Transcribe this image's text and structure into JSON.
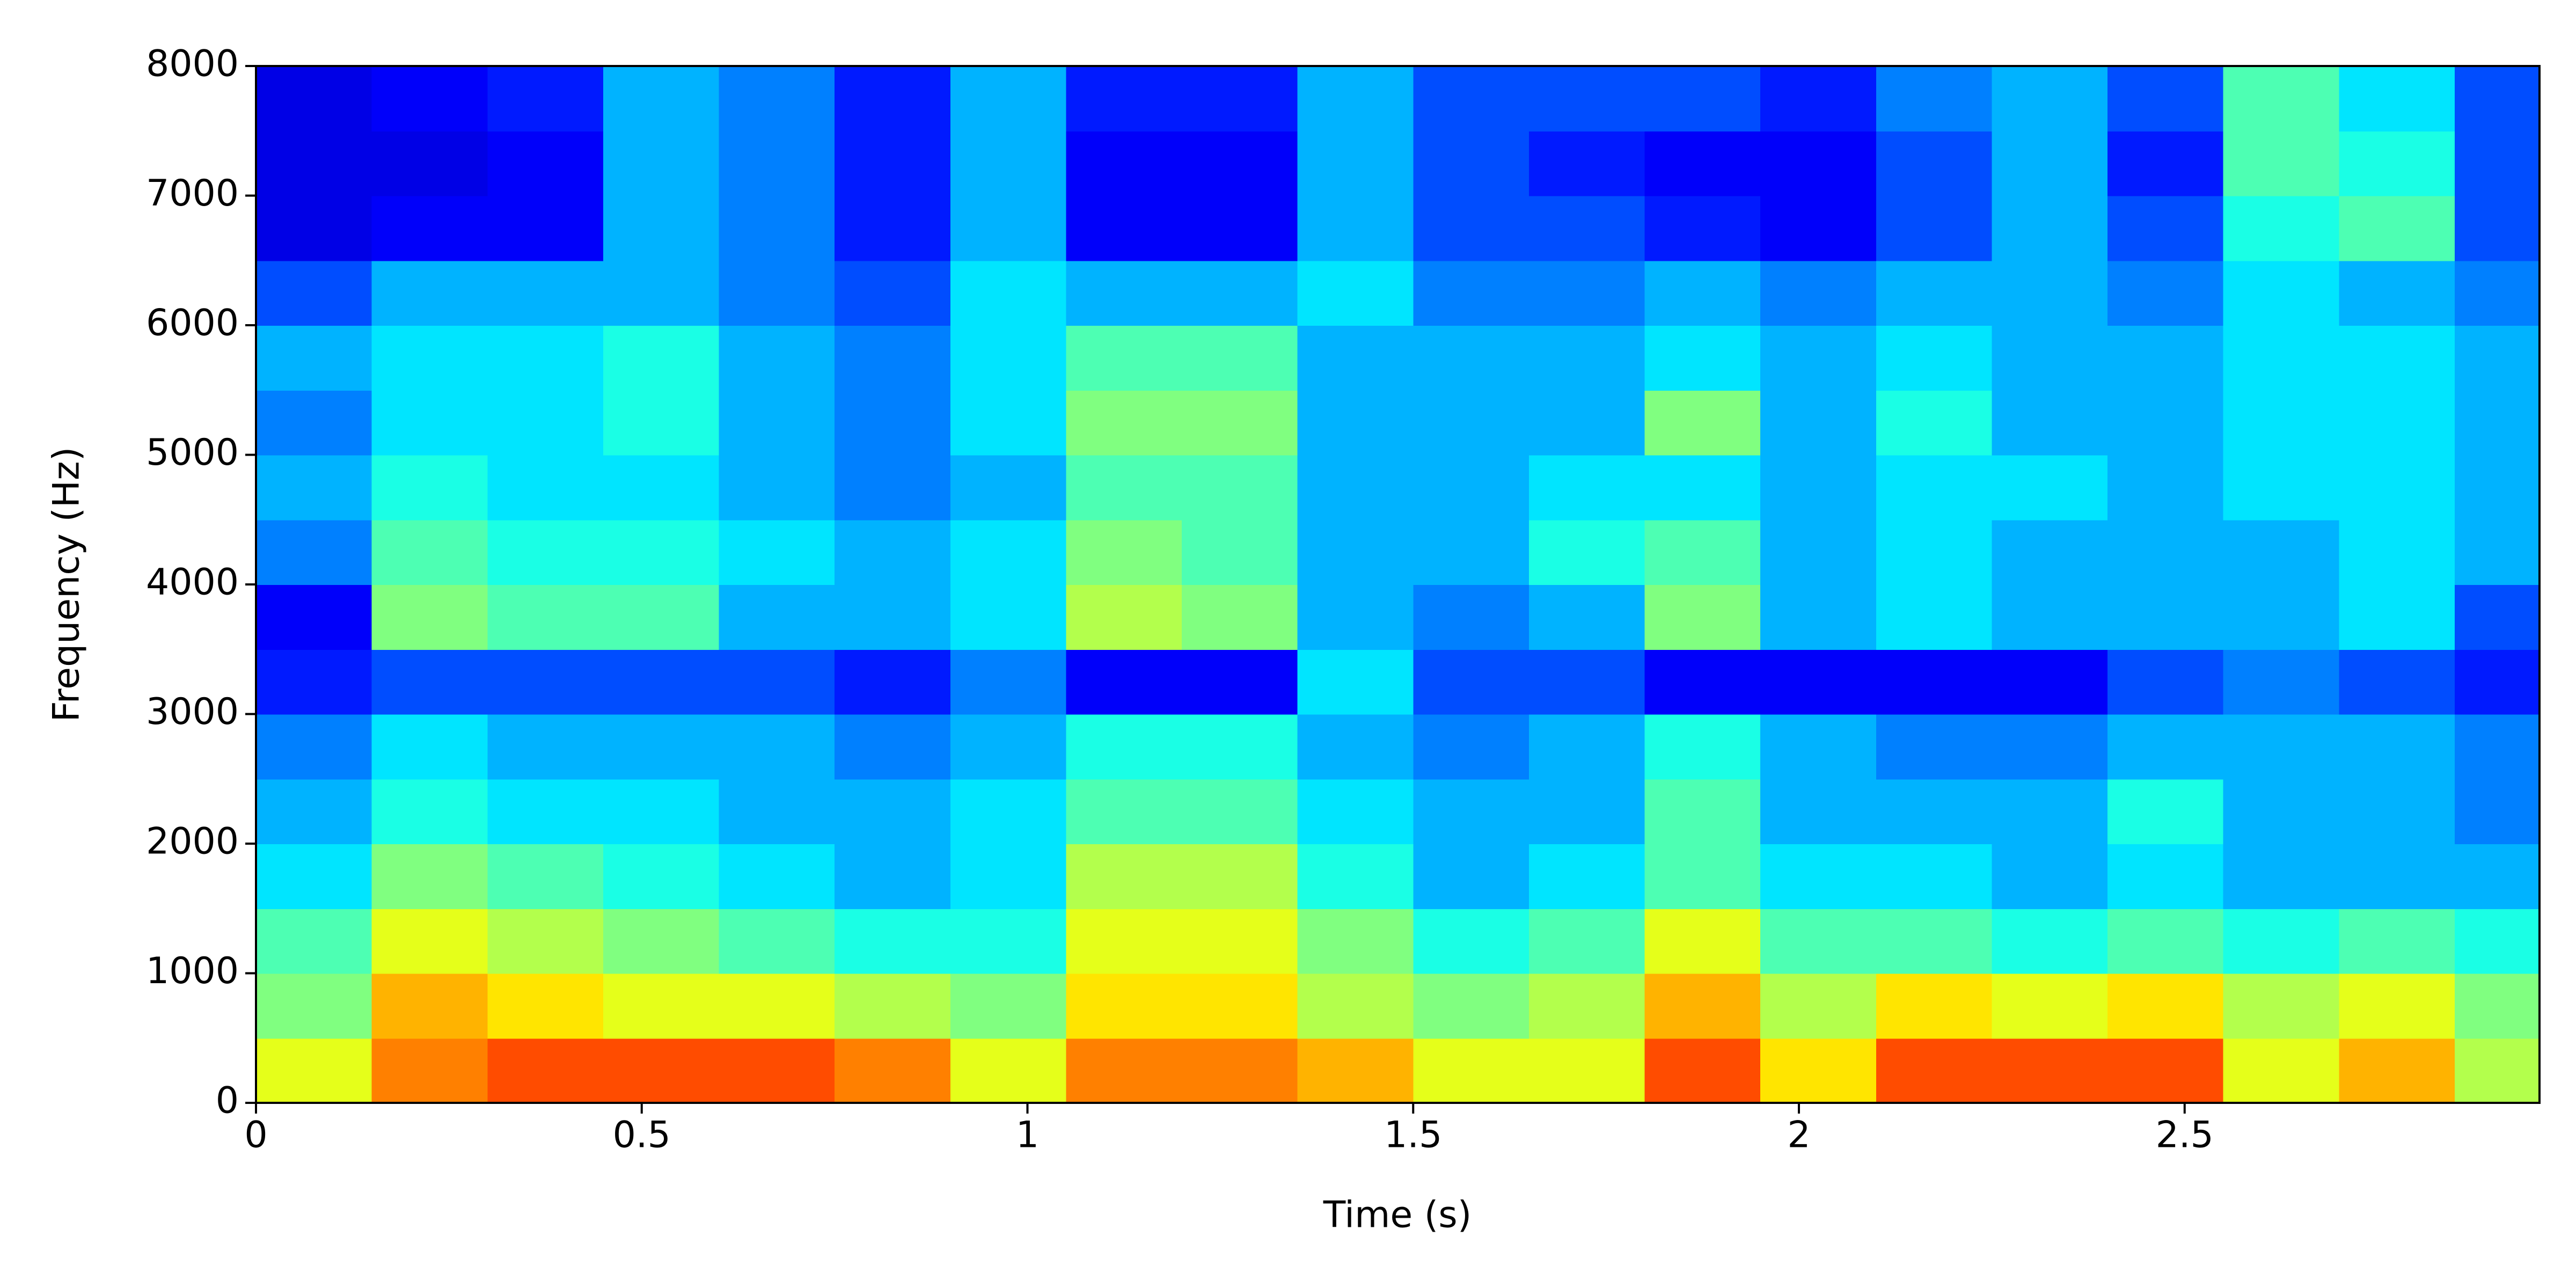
{
  "chart_data": {
    "type": "heatmap",
    "xlabel": "Time (s)",
    "ylabel": "Frequency (Hz)",
    "colormap": "jet",
    "clim": [
      0,
      1
    ],
    "xbins": [
      0,
      0.15,
      0.3,
      0.45,
      0.6,
      0.75,
      0.9,
      1.05,
      1.2,
      1.35,
      1.5,
      1.65,
      1.8,
      1.95,
      2.1,
      2.25,
      2.4,
      2.55,
      2.7,
      2.85,
      2.96
    ],
    "ybins": [
      0,
      500,
      1000,
      1500,
      2000,
      2500,
      3000,
      3500,
      4000,
      4500,
      5000,
      5500,
      6000,
      6500,
      7000,
      7500,
      8000
    ],
    "values": [
      [
        0.6,
        0.75,
        0.8,
        0.8,
        0.8,
        0.75,
        0.6,
        0.75,
        0.75,
        0.7,
        0.6,
        0.6,
        0.8,
        0.65,
        0.8,
        0.8,
        0.8,
        0.6,
        0.7,
        0.55
      ],
      [
        0.5,
        0.7,
        0.65,
        0.6,
        0.6,
        0.55,
        0.5,
        0.65,
        0.65,
        0.55,
        0.5,
        0.55,
        0.7,
        0.55,
        0.65,
        0.6,
        0.65,
        0.55,
        0.6,
        0.5
      ],
      [
        0.45,
        0.6,
        0.55,
        0.5,
        0.45,
        0.4,
        0.4,
        0.6,
        0.6,
        0.5,
        0.4,
        0.45,
        0.6,
        0.45,
        0.45,
        0.4,
        0.45,
        0.4,
        0.45,
        0.4
      ],
      [
        0.35,
        0.5,
        0.45,
        0.4,
        0.35,
        0.3,
        0.35,
        0.55,
        0.55,
        0.4,
        0.3,
        0.35,
        0.45,
        0.35,
        0.35,
        0.3,
        0.35,
        0.3,
        0.3,
        0.3
      ],
      [
        0.3,
        0.4,
        0.35,
        0.35,
        0.3,
        0.3,
        0.35,
        0.45,
        0.45,
        0.35,
        0.3,
        0.3,
        0.45,
        0.3,
        0.3,
        0.3,
        0.4,
        0.3,
        0.3,
        0.25
      ],
      [
        0.25,
        0.35,
        0.3,
        0.3,
        0.3,
        0.25,
        0.3,
        0.4,
        0.4,
        0.3,
        0.25,
        0.3,
        0.4,
        0.3,
        0.25,
        0.25,
        0.3,
        0.3,
        0.3,
        0.25
      ],
      [
        0.15,
        0.2,
        0.2,
        0.2,
        0.2,
        0.15,
        0.25,
        0.12,
        0.12,
        0.35,
        0.2,
        0.2,
        0.12,
        0.12,
        0.12,
        0.12,
        0.2,
        0.25,
        0.2,
        0.15
      ],
      [
        0.12,
        0.5,
        0.45,
        0.45,
        0.3,
        0.3,
        0.35,
        0.55,
        0.5,
        0.3,
        0.25,
        0.3,
        0.5,
        0.3,
        0.35,
        0.3,
        0.3,
        0.3,
        0.35,
        0.2
      ],
      [
        0.25,
        0.45,
        0.4,
        0.4,
        0.35,
        0.3,
        0.35,
        0.5,
        0.45,
        0.3,
        0.3,
        0.4,
        0.45,
        0.3,
        0.35,
        0.3,
        0.3,
        0.3,
        0.35,
        0.3
      ],
      [
        0.3,
        0.4,
        0.35,
        0.35,
        0.3,
        0.25,
        0.3,
        0.45,
        0.45,
        0.3,
        0.3,
        0.35,
        0.35,
        0.3,
        0.35,
        0.35,
        0.3,
        0.35,
        0.35,
        0.3
      ],
      [
        0.25,
        0.35,
        0.35,
        0.4,
        0.3,
        0.25,
        0.35,
        0.5,
        0.5,
        0.3,
        0.3,
        0.3,
        0.5,
        0.3,
        0.4,
        0.3,
        0.3,
        0.35,
        0.35,
        0.3
      ],
      [
        0.3,
        0.35,
        0.35,
        0.4,
        0.3,
        0.25,
        0.35,
        0.45,
        0.45,
        0.3,
        0.3,
        0.3,
        0.35,
        0.3,
        0.35,
        0.3,
        0.3,
        0.35,
        0.35,
        0.3
      ],
      [
        0.2,
        0.3,
        0.3,
        0.3,
        0.25,
        0.2,
        0.35,
        0.3,
        0.3,
        0.35,
        0.25,
        0.25,
        0.3,
        0.25,
        0.3,
        0.3,
        0.25,
        0.35,
        0.3,
        0.25
      ],
      [
        0.1,
        0.12,
        0.12,
        0.3,
        0.25,
        0.15,
        0.3,
        0.12,
        0.12,
        0.3,
        0.2,
        0.2,
        0.15,
        0.12,
        0.2,
        0.3,
        0.2,
        0.4,
        0.45,
        0.2
      ],
      [
        0.1,
        0.1,
        0.12,
        0.3,
        0.25,
        0.15,
        0.3,
        0.12,
        0.12,
        0.3,
        0.2,
        0.15,
        0.12,
        0.12,
        0.2,
        0.3,
        0.15,
        0.45,
        0.4,
        0.2
      ],
      [
        0.1,
        0.12,
        0.15,
        0.3,
        0.25,
        0.15,
        0.3,
        0.15,
        0.15,
        0.3,
        0.2,
        0.2,
        0.2,
        0.15,
        0.25,
        0.3,
        0.2,
        0.45,
        0.35,
        0.2
      ]
    ],
    "xlim": [
      0,
      2.96
    ],
    "xticks": [
      0,
      0.5,
      1,
      1.5,
      2,
      2.5
    ],
    "ylim": [
      0,
      8000
    ],
    "yticks": [
      0,
      1000,
      2000,
      3000,
      4000,
      5000,
      6000,
      7000,
      8000
    ]
  }
}
